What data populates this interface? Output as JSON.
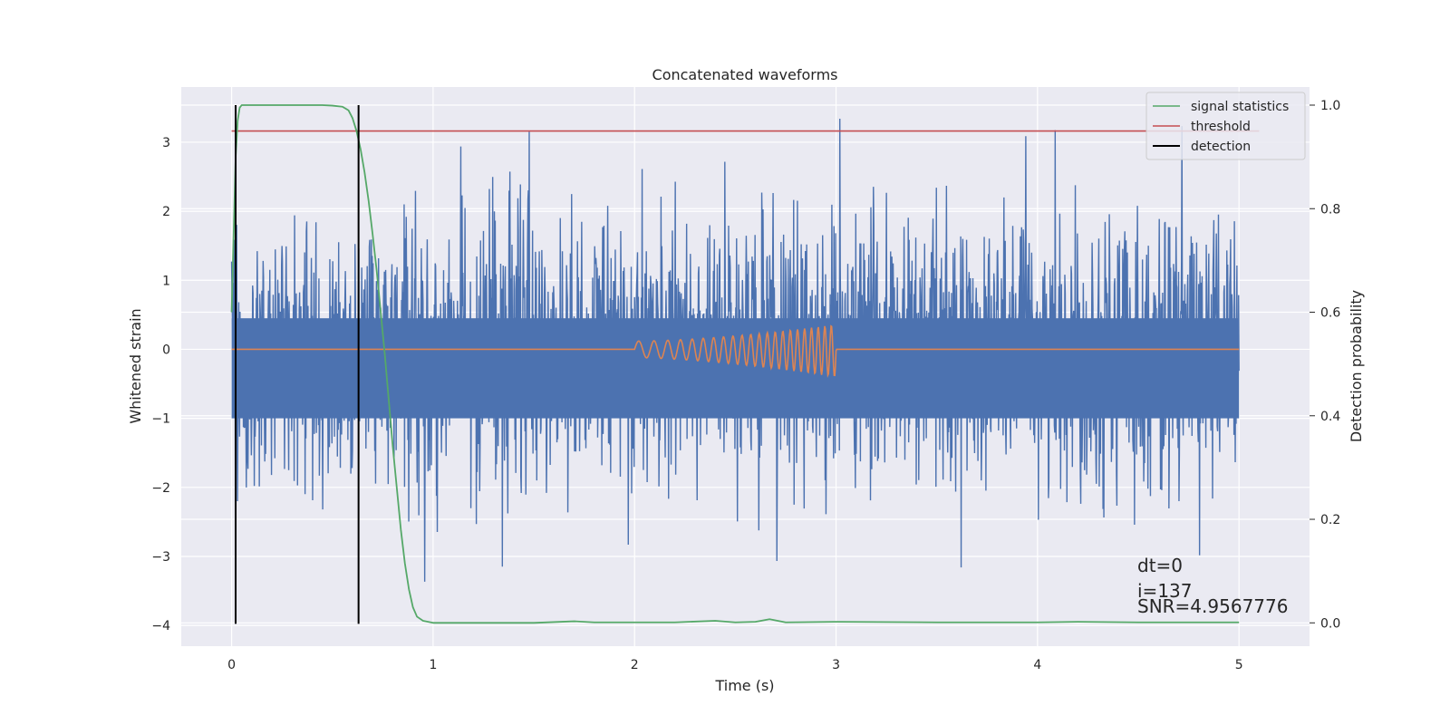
{
  "chart_data": {
    "type": "line",
    "title": "Concatenated waveforms",
    "xlabel": "Time (s)",
    "ylabel": "Whitened strain",
    "y2label": "Detection probability",
    "xlim": [
      -0.25,
      5.35
    ],
    "ylim": [
      -4.3,
      3.8
    ],
    "y2lim": [
      -0.045,
      1.035
    ],
    "xticks": [
      0,
      1,
      2,
      3,
      4,
      5
    ],
    "xtick_labels": [
      "0",
      "1",
      "2",
      "3",
      "4",
      "5"
    ],
    "yticks": [
      -4,
      -3,
      -2,
      -1,
      0,
      1,
      2,
      3
    ],
    "ytick_labels": [
      "−4",
      "−3",
      "−2",
      "−1",
      "0",
      "1",
      "2",
      "3"
    ],
    "y2ticks": [
      0.0,
      0.2,
      0.4,
      0.6,
      0.8,
      1.0
    ],
    "y2tick_labels": [
      "0.0",
      "0.2",
      "0.4",
      "0.6",
      "0.8",
      "1.0"
    ],
    "grid": true,
    "legend_position": "top-right",
    "background": "#eaeaf2",
    "colors": {
      "strain": "#4c72b0",
      "template": "#dd8452",
      "signal_statistics": "#55a868",
      "threshold": "#c44e52",
      "detection": "#000000"
    },
    "series": [
      {
        "name": "signal statistics",
        "axis": "right",
        "x": [
          0.0,
          0.01,
          0.02,
          0.03,
          0.04,
          0.05,
          0.06,
          0.1,
          0.2,
          0.3,
          0.4,
          0.45,
          0.5,
          0.55,
          0.58,
          0.6,
          0.62,
          0.64,
          0.66,
          0.68,
          0.7,
          0.72,
          0.74,
          0.76,
          0.78,
          0.8,
          0.82,
          0.84,
          0.86,
          0.88,
          0.9,
          0.92,
          0.95,
          1.0,
          1.2,
          1.5,
          1.7,
          1.8,
          2.0,
          2.2,
          2.4,
          2.5,
          2.6,
          2.67,
          2.75,
          3.0,
          3.5,
          4.0,
          4.2,
          4.5,
          5.0
        ],
        "values": [
          0.6,
          0.75,
          0.9,
          0.97,
          0.995,
          1.0,
          1.0,
          1.0,
          1.0,
          1.0,
          1.0,
          1.0,
          0.999,
          0.997,
          0.99,
          0.975,
          0.95,
          0.915,
          0.87,
          0.815,
          0.75,
          0.68,
          0.6,
          0.52,
          0.43,
          0.34,
          0.26,
          0.18,
          0.115,
          0.065,
          0.03,
          0.012,
          0.004,
          0.0,
          0.0,
          0.0,
          0.003,
          0.001,
          0.001,
          0.001,
          0.004,
          0.001,
          0.002,
          0.007,
          0.001,
          0.002,
          0.001,
          0.001,
          0.002,
          0.001,
          0.001
        ]
      },
      {
        "name": "threshold",
        "axis": "right",
        "x": [
          0.0,
          5.1
        ],
        "values": [
          0.95,
          0.95
        ]
      },
      {
        "name": "detection",
        "axis": "right",
        "type": "vline",
        "x": [
          0.02,
          0.63
        ],
        "ymin": -0.002,
        "ymax": 1.0
      },
      {
        "name": "",
        "axis": "left",
        "description": "whitened strain noise",
        "x_range": [
          0.0,
          5.0
        ],
        "amplitude_sigma": 0.95
      },
      {
        "name": "",
        "axis": "left",
        "description": "injected chirp template",
        "x_range": [
          0.0,
          5.0
        ],
        "chirp_start": 2.0,
        "chirp_end": 3.0
      }
    ],
    "annotations": [
      "dt=0",
      "i=137",
      "SNR=4.9567776"
    ]
  }
}
